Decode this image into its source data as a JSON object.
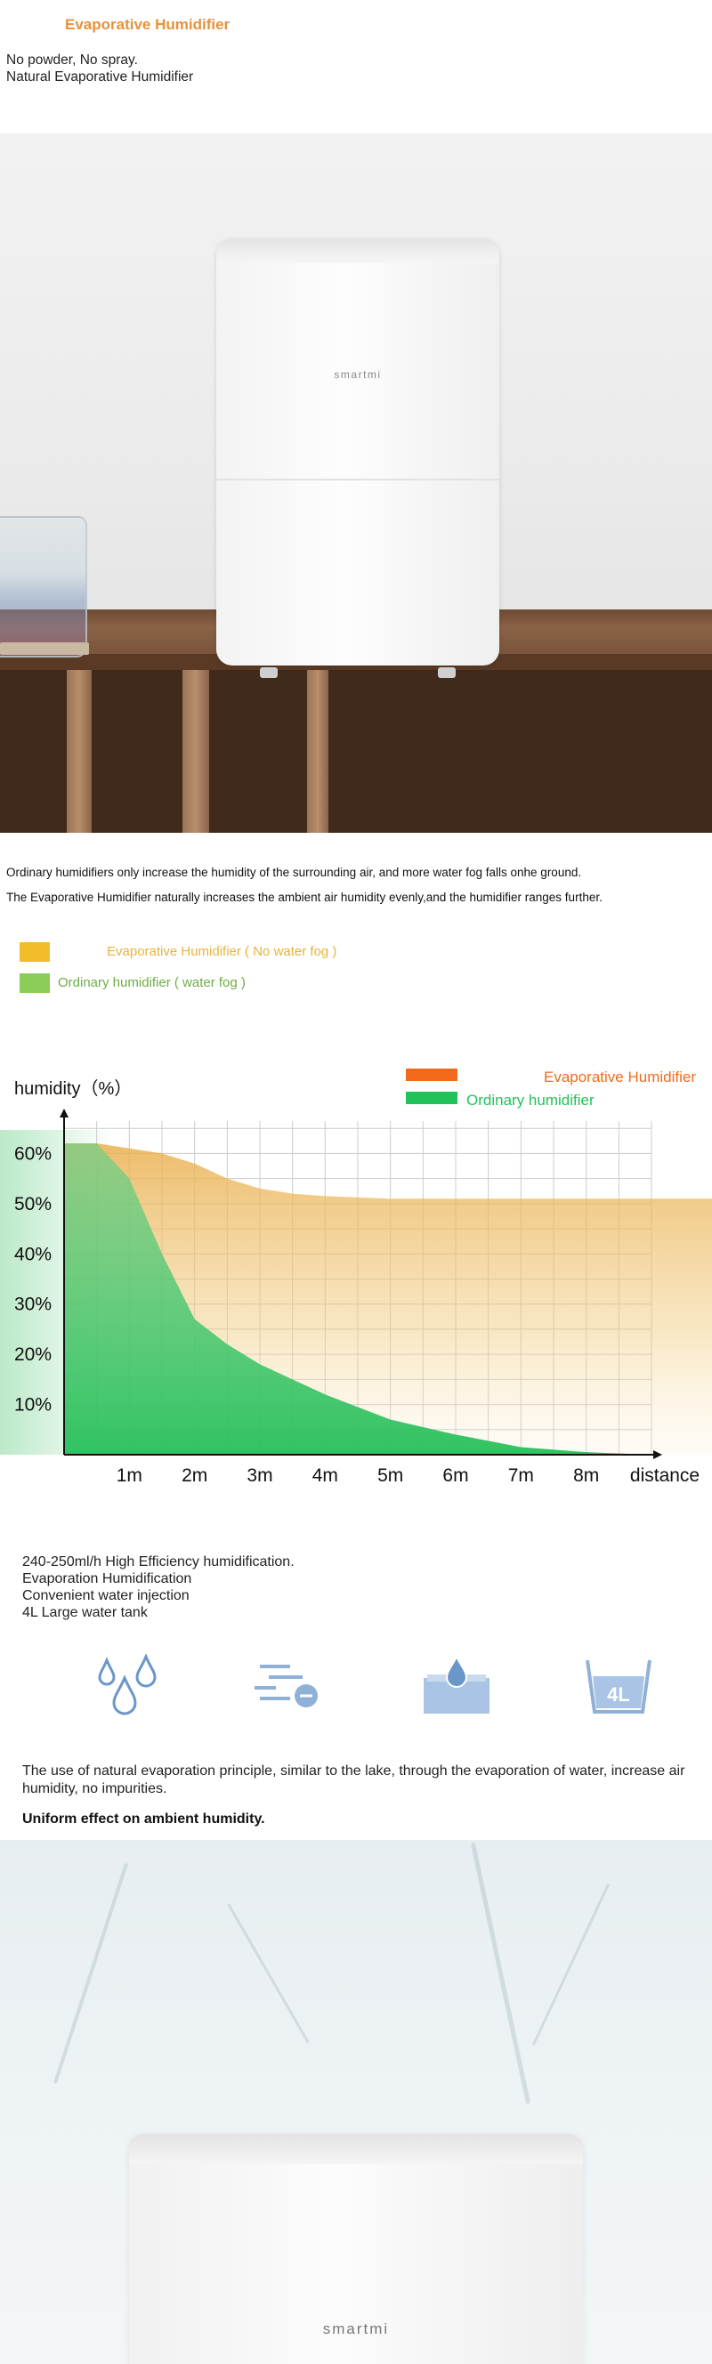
{
  "header": {
    "title": "Evaporative Humidifier",
    "lines": [
      "No powder, No spray.",
      "Natural Evaporative Humidifier"
    ]
  },
  "hero1": {
    "brand": "smartmi"
  },
  "description": {
    "line1": "Ordinary humidifiers only increase the humidity of the surrounding air, and more water fog falls onhe ground.",
    "line2": "The Evaporative Humidifier naturally increases the ambient air humidity evenly,and the humidifier ranges further."
  },
  "legend_top": [
    {
      "label": "Evaporative Humidifier ( No water fog )",
      "color": "#f2bd2b",
      "text_color": "#e8b33a"
    },
    {
      "label": "Ordinary humidifier ( water fog )",
      "color": "#8ccd5a",
      "text_color": "#6cae45"
    }
  ],
  "chart_data": {
    "type": "area",
    "ylabel": "humidity（%）",
    "xlabel": "distance",
    "x_ticks": [
      "1m",
      "2m",
      "3m",
      "4m",
      "5m",
      "6m",
      "7m",
      "8m"
    ],
    "y_ticks": [
      "60%",
      "50%",
      "40%",
      "30%",
      "20%",
      "10%"
    ],
    "ylim": [
      0,
      70
    ],
    "x": [
      0,
      0.5,
      1,
      1.5,
      2,
      2.5,
      3,
      3.5,
      4,
      5,
      6,
      7,
      8,
      9
    ],
    "series": [
      {
        "name": "Evaporative Humidifier",
        "color": "#f0a830",
        "legend_color": "#f26a1b",
        "values": [
          62,
          62,
          61,
          60,
          58,
          55,
          53,
          52,
          51.5,
          51,
          51,
          51,
          51,
          51
        ]
      },
      {
        "name": "Ordinary humidifier",
        "color": "#3cc060",
        "legend_color": "#22c25a",
        "values": [
          62,
          62,
          55,
          40,
          27,
          22,
          18,
          15,
          12,
          7,
          4,
          1.5,
          0.5,
          0
        ]
      }
    ],
    "legend_position": "top-right",
    "grid": true
  },
  "features": {
    "lines": [
      "240-250ml/h High Efficiency humidification.",
      "Evaporation Humidification",
      "Convenient water injection",
      "4L Large water tank"
    ],
    "icons": [
      "water-drops-icon",
      "evaporation-icon",
      "water-injection-icon",
      "water-tank-4l-icon"
    ],
    "tank_label": "4L"
  },
  "paragraph": "The use of natural evaporation principle, similar to the lake, through the evaporation of water, increase air humidity, no impurities.",
  "uniform": "Uniform effect on ambient humidity.",
  "hero2": {
    "brand": "smartmi"
  }
}
